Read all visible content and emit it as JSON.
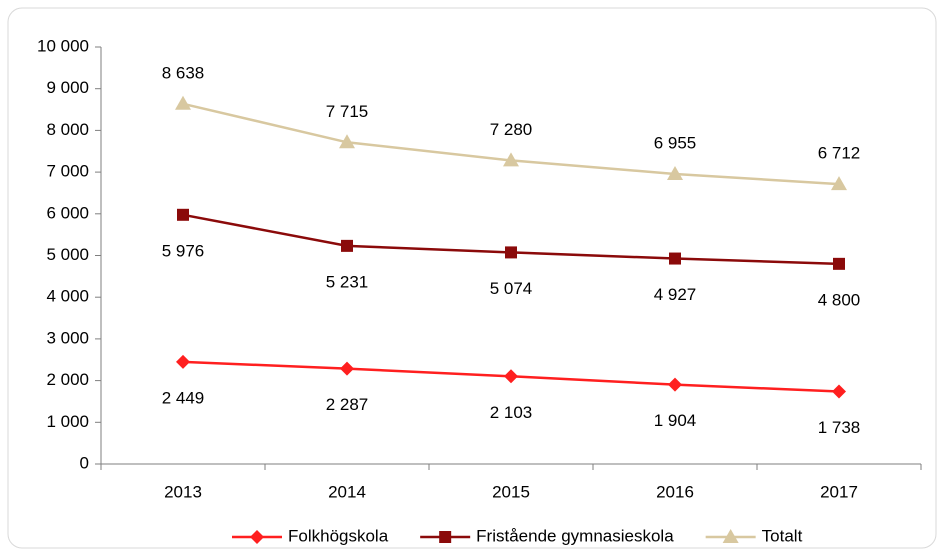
{
  "chart_data": {
    "type": "line",
    "categories": [
      "2013",
      "2014",
      "2015",
      "2016",
      "2017"
    ],
    "series": [
      {
        "name": "Folkhögskola",
        "color": "#ff1f1f",
        "marker": "diamond",
        "label_position": "below",
        "values": [
          2449,
          2287,
          2103,
          1904,
          1738
        ],
        "value_labels": [
          "2 449",
          "2 287",
          "2 103",
          "1 904",
          "1 738"
        ]
      },
      {
        "name": "Fristående gymnasieskola",
        "color": "#8b0a0a",
        "marker": "square",
        "label_position": "below",
        "values": [
          5976,
          5231,
          5074,
          4927,
          4800
        ],
        "value_labels": [
          "5 976",
          "5 231",
          "5 074",
          "4 927",
          "4 800"
        ]
      },
      {
        "name": "Totalt",
        "color": "#d8c8a0",
        "marker": "triangle",
        "label_position": "above",
        "values": [
          8638,
          7715,
          7280,
          6955,
          6712
        ],
        "value_labels": [
          "8 638",
          "7 715",
          "7 280",
          "6 955",
          "6 712"
        ]
      }
    ],
    "ylim": [
      0,
      10000
    ],
    "yticks": [
      0,
      {
        "value": 1000,
        "label": "1 000"
      },
      {
        "value": 2000,
        "label": "2 000"
      },
      {
        "value": 3000,
        "label": "3 000"
      },
      {
        "value": 4000,
        "label": "4 000"
      },
      {
        "value": 5000,
        "label": "5 000"
      },
      {
        "value": 6000,
        "label": "6 000"
      },
      {
        "value": 7000,
        "label": "7 000"
      },
      {
        "value": 8000,
        "label": "8 000"
      },
      {
        "value": 9000,
        "label": "9 000"
      },
      {
        "value": 10000,
        "label": "10 000"
      }
    ],
    "grid": false,
    "legend": "bottom"
  }
}
